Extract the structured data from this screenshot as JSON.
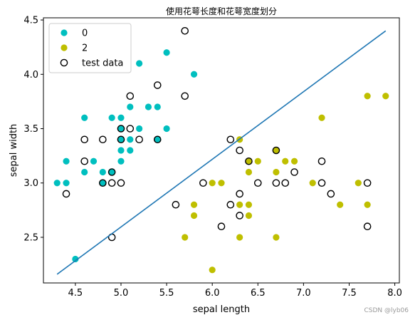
{
  "watermark": "CSDN @lyb06",
  "chart_data": {
    "type": "scatter",
    "title": "使用花萼长度和花萼宽度划分",
    "xlabel": "sepal length",
    "ylabel": "sepal width",
    "xlim": [
      4.15,
      8.05
    ],
    "ylim": [
      2.08,
      4.52
    ],
    "xticks": [
      4.5,
      5.0,
      5.5,
      6.0,
      6.5,
      7.0,
      7.5,
      8.0
    ],
    "xtick_labels": [
      "4.5",
      "5.0",
      "5.5",
      "6.0",
      "6.5",
      "7.0",
      "7.5",
      "8.0"
    ],
    "yticks": [
      2.5,
      3.0,
      3.5,
      4.0,
      4.5
    ],
    "ytick_labels": [
      "2.5",
      "3.0",
      "3.5",
      "4.0",
      "4.5"
    ],
    "grid": false,
    "legend_position": "top-left",
    "series": [
      {
        "name": "0",
        "color": "#00bfbf",
        "marker": "filled-circle",
        "points": [
          [
            4.3,
            3.0
          ],
          [
            4.4,
            3.2
          ],
          [
            4.4,
            3.0
          ],
          [
            4.5,
            2.3
          ],
          [
            4.6,
            3.6
          ],
          [
            4.6,
            3.1
          ],
          [
            4.7,
            3.2
          ],
          [
            4.8,
            3.1
          ],
          [
            4.8,
            3.0
          ],
          [
            4.9,
            3.1
          ],
          [
            4.9,
            3.6
          ],
          [
            5.0,
            3.6
          ],
          [
            5.0,
            3.4
          ],
          [
            5.0,
            3.3
          ],
          [
            5.0,
            3.2
          ],
          [
            5.0,
            3.5
          ],
          [
            5.1,
            3.7
          ],
          [
            5.1,
            3.3
          ],
          [
            5.1,
            3.4
          ],
          [
            5.2,
            4.1
          ],
          [
            5.2,
            3.5
          ],
          [
            5.3,
            3.7
          ],
          [
            5.4,
            3.7
          ],
          [
            5.4,
            3.4
          ],
          [
            5.5,
            4.2
          ],
          [
            5.5,
            3.5
          ],
          [
            5.8,
            4.0
          ]
        ]
      },
      {
        "name": "2",
        "color": "#bfbf00",
        "marker": "filled-circle",
        "points": [
          [
            5.7,
            2.5
          ],
          [
            5.8,
            2.8
          ],
          [
            5.8,
            2.7
          ],
          [
            6.0,
            3.0
          ],
          [
            6.0,
            2.2
          ],
          [
            6.1,
            3.0
          ],
          [
            6.3,
            3.4
          ],
          [
            6.3,
            2.5
          ],
          [
            6.3,
            2.8
          ],
          [
            6.4,
            2.8
          ],
          [
            6.4,
            2.7
          ],
          [
            6.4,
            3.1
          ],
          [
            6.4,
            3.2
          ],
          [
            6.5,
            3.2
          ],
          [
            6.7,
            3.3
          ],
          [
            6.7,
            3.1
          ],
          [
            6.7,
            2.5
          ],
          [
            6.8,
            3.2
          ],
          [
            6.9,
            3.2
          ],
          [
            7.1,
            3.0
          ],
          [
            7.2,
            3.6
          ],
          [
            7.4,
            2.8
          ],
          [
            7.6,
            3.0
          ],
          [
            7.7,
            3.8
          ],
          [
            7.7,
            2.8
          ],
          [
            7.9,
            3.8
          ]
        ]
      },
      {
        "name": "test data",
        "color": "#000000",
        "marker": "outline-circle",
        "points": [
          [
            4.4,
            2.9
          ],
          [
            4.6,
            3.4
          ],
          [
            4.6,
            3.2
          ],
          [
            4.8,
            3.4
          ],
          [
            4.8,
            3.0
          ],
          [
            4.9,
            3.1
          ],
          [
            4.9,
            3.0
          ],
          [
            4.9,
            2.5
          ],
          [
            5.0,
            3.5
          ],
          [
            5.0,
            3.4
          ],
          [
            5.0,
            3.0
          ],
          [
            5.1,
            3.8
          ],
          [
            5.1,
            3.5
          ],
          [
            5.2,
            3.4
          ],
          [
            5.4,
            3.9
          ],
          [
            5.4,
            3.4
          ],
          [
            5.7,
            4.4
          ],
          [
            5.7,
            3.8
          ],
          [
            5.6,
            2.8
          ],
          [
            5.9,
            3.0
          ],
          [
            6.1,
            2.6
          ],
          [
            6.2,
            3.4
          ],
          [
            6.2,
            2.8
          ],
          [
            6.3,
            3.3
          ],
          [
            6.3,
            2.9
          ],
          [
            6.3,
            2.7
          ],
          [
            6.4,
            3.2
          ],
          [
            6.5,
            3.0
          ],
          [
            6.7,
            3.3
          ],
          [
            6.7,
            3.0
          ],
          [
            6.8,
            3.0
          ],
          [
            6.9,
            3.1
          ],
          [
            7.2,
            3.2
          ],
          [
            7.2,
            3.0
          ],
          [
            7.3,
            2.9
          ],
          [
            7.7,
            3.0
          ],
          [
            7.7,
            2.6
          ]
        ]
      }
    ],
    "line": {
      "color": "#1f77b4",
      "points": [
        [
          4.3,
          2.16
        ],
        [
          7.9,
          4.4
        ]
      ]
    },
    "legend": [
      {
        "label": "0",
        "color": "#00bfbf",
        "marker": "filled-circle"
      },
      {
        "label": "2",
        "color": "#bfbf00",
        "marker": "filled-circle"
      },
      {
        "label": "test data",
        "color": "#000000",
        "marker": "outline-circle"
      }
    ]
  }
}
